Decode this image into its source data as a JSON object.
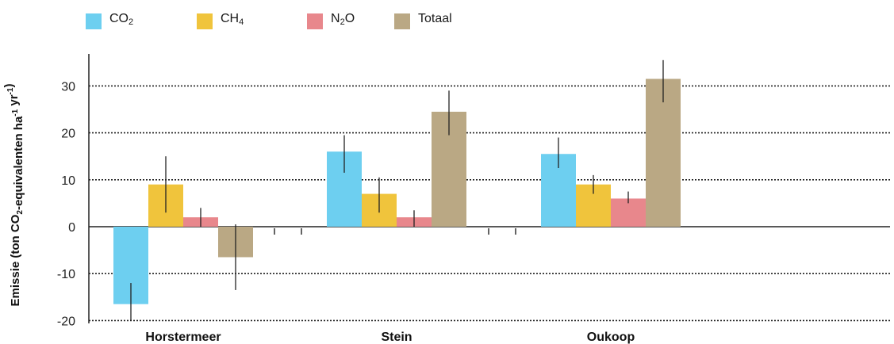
{
  "chart_data": {
    "type": "bar",
    "title": "",
    "xlabel": "",
    "ylabel": {
      "parts": [
        {
          "t": "Emissie (ton CO",
          "s": "n"
        },
        {
          "t": "2",
          "s": "sub"
        },
        {
          "t": "-equivalenten ha",
          "s": "n"
        },
        {
          "t": "-1",
          "s": "sup"
        },
        {
          "t": " yr",
          "s": "n"
        },
        {
          "t": "-1",
          "s": "sup"
        },
        {
          "t": ")",
          "s": "n"
        }
      ]
    },
    "ylim": [
      -20,
      34
    ],
    "yticks": [
      30,
      20,
      10,
      0,
      -10,
      -20
    ],
    "ytick_labels": [
      "30",
      "20",
      "10",
      "0",
      "-10",
      "-20"
    ],
    "grid": "dotted horizontal",
    "legend_position": "top-left",
    "categories": [
      "Horstermeer",
      "Stein",
      "Oukoop"
    ],
    "series": [
      {
        "key": "co2",
        "name": "CO2",
        "base": "CO",
        "sub": "2",
        "color": "#6dcff0",
        "values": [
          -16.5,
          16,
          15.5
        ],
        "err_low": [
          -20,
          11.5,
          12.5
        ],
        "err_high": [
          -12,
          19.5,
          19
        ]
      },
      {
        "key": "ch4",
        "name": "CH4",
        "base": "CH",
        "sub": "4",
        "color": "#f0c43c",
        "values": [
          9,
          7,
          9
        ],
        "err_low": [
          3,
          3,
          7
        ],
        "err_high": [
          15,
          10.5,
          11
        ]
      },
      {
        "key": "n2o",
        "name": "N2O",
        "base": "N",
        "sub": "2",
        "suffix": "O",
        "color": "#e8878c",
        "values": [
          2,
          2,
          6
        ],
        "err_low": [
          0,
          0,
          5
        ],
        "err_high": [
          4,
          3.5,
          7.5
        ]
      },
      {
        "key": "totaal",
        "name": "Totaal",
        "base": "Totaal",
        "sub": "",
        "color": "#baa884",
        "values": [
          -6.5,
          24.5,
          31.5
        ],
        "err_low": [
          -13.5,
          19.5,
          26.5
        ],
        "err_high": [
          0.5,
          29,
          35.5
        ]
      }
    ]
  }
}
